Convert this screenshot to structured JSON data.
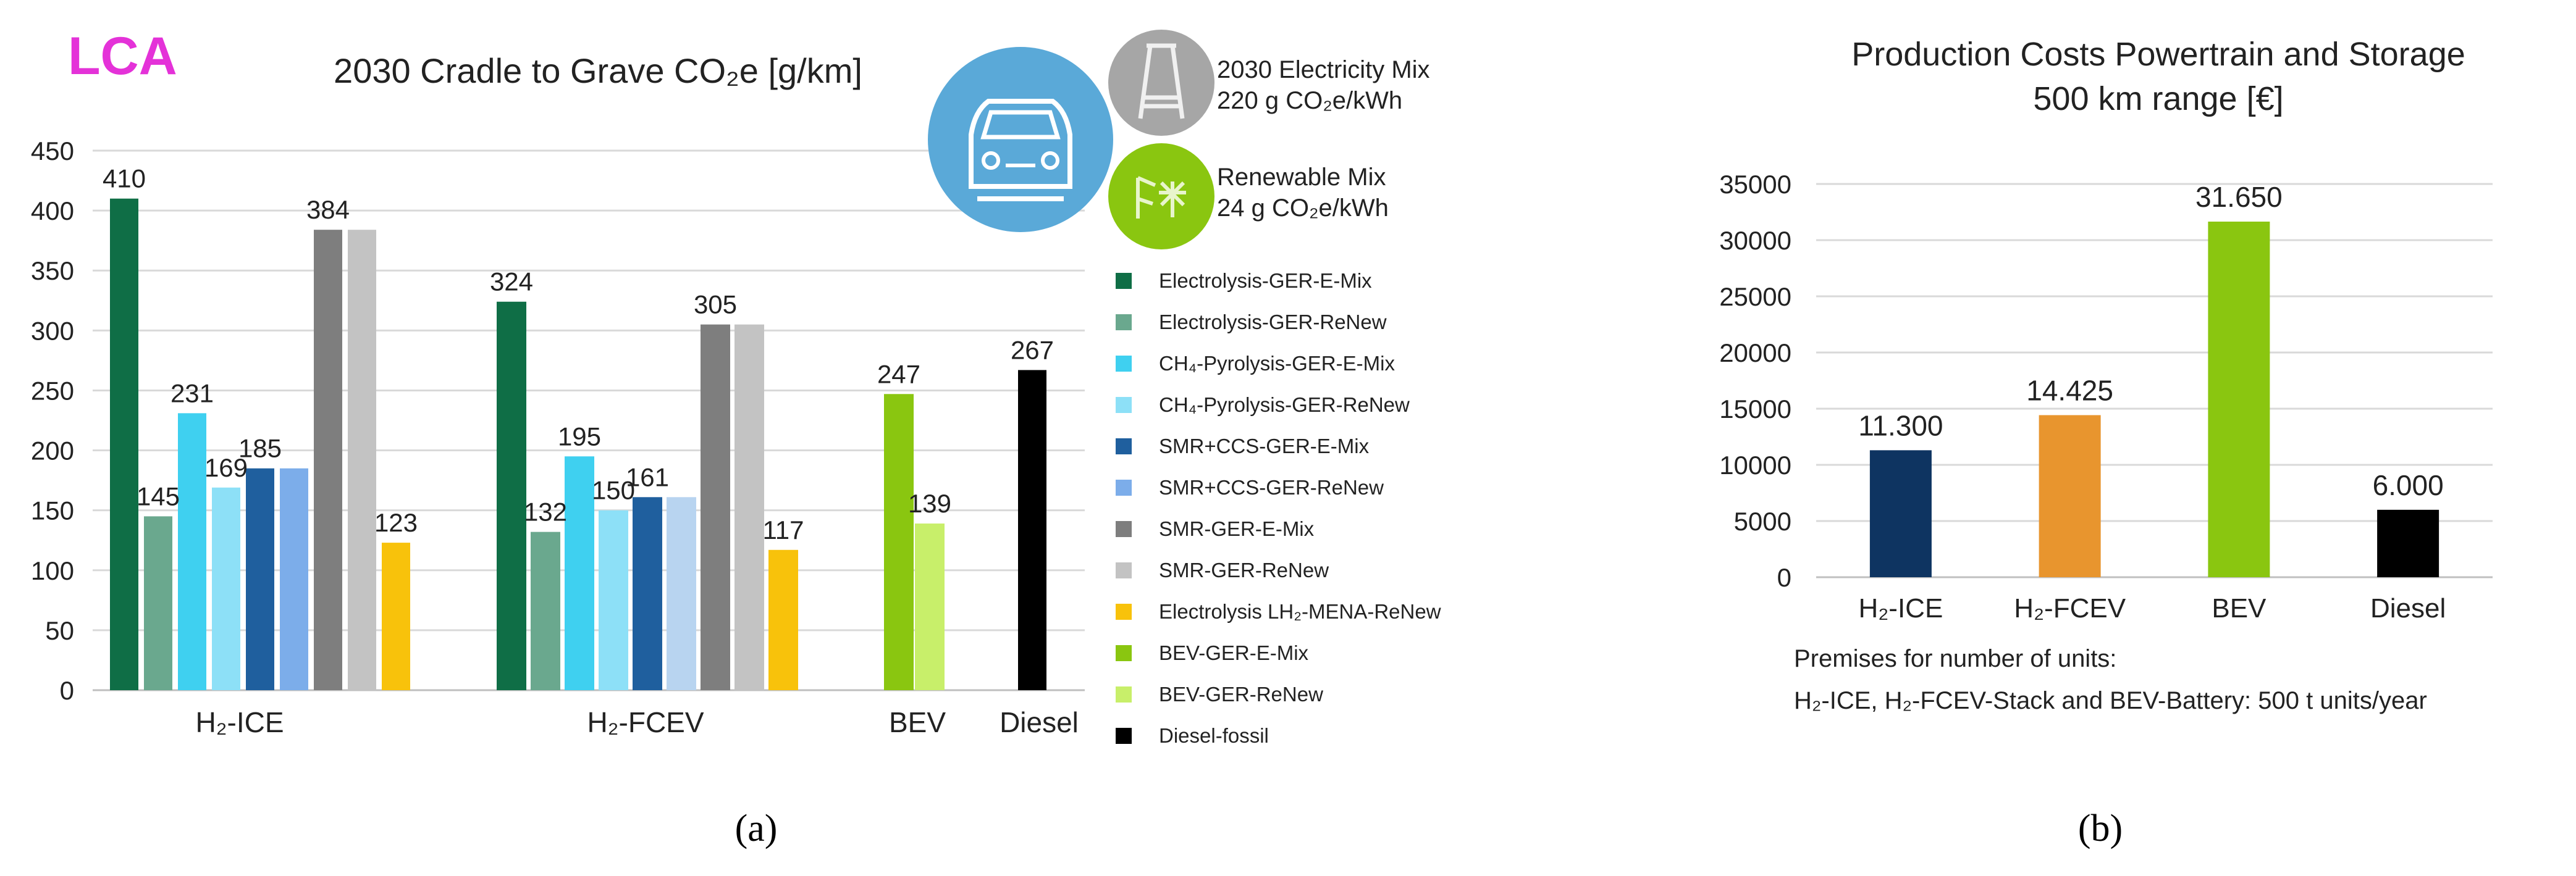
{
  "chart_data": [
    {
      "type": "bar",
      "logo": "LCA",
      "title": "2030 Cradle to Grave CO₂e [g/km]",
      "caption": "(a)",
      "ylim": [
        0,
        450
      ],
      "yticks": [
        "0",
        "50",
        "100",
        "150",
        "200",
        "250",
        "300",
        "350",
        "400",
        "450"
      ],
      "grid": true,
      "legend_position": "right",
      "colors": {
        "Electrolysis-GER-E-Mix": "#0f6e46",
        "Electrolysis-GER-ReNew": "#6aa88e",
        "CH₄-Pyrolysis-GER-E-Mix": "#3fd0f0",
        "CH₄-Pyrolysis-GER-ReNew": "#8de0f7",
        "SMR+CCS-GER-E-Mix": "#1f5f9e",
        "SMR+CCS-GER-ReNew": "#7cadea",
        "SMR-GER-E-Mix": "#7e7e7e",
        "SMR-GER-ReNew": "#c3c3c3",
        "Electrolysis LH₂-MENA-ReNew": "#f8c20b",
        "BEV-GER-E-Mix": "#8ac610",
        "BEV-GER-ReNew": "#c8ef6a",
        "Diesel-fossil": "#000000",
        "SMR+CCS-GER-ReNew (H₂-FCEV)": "#b8d4f0"
      },
      "legend": [
        "Electrolysis-GER-E-Mix",
        "Electrolysis-GER-ReNew",
        "CH₄-Pyrolysis-GER-E-Mix",
        "CH₄-Pyrolysis-GER-ReNew",
        "SMR+CCS-GER-E-Mix",
        "SMR+CCS-GER-ReNew",
        "SMR-GER-E-Mix",
        "SMR-GER-ReNew",
        "Electrolysis LH₂-MENA-ReNew",
        "BEV-GER-E-Mix",
        "BEV-GER-ReNew",
        "Diesel-fossil"
      ],
      "groups": [
        {
          "label": "H₂-ICE",
          "bars": [
            {
              "series": "Electrolysis-GER-E-Mix",
              "value": 410,
              "label": "410"
            },
            {
              "series": "Electrolysis-GER-ReNew",
              "value": 145,
              "label": "145"
            },
            {
              "series": "CH₄-Pyrolysis-GER-E-Mix",
              "value": 231,
              "label": "231"
            },
            {
              "series": "CH₄-Pyrolysis-GER-ReNew",
              "value": 169,
              "label": "169"
            },
            {
              "series": "SMR+CCS-GER-E-Mix",
              "value": 185,
              "label": "185"
            },
            {
              "series": "SMR+CCS-GER-ReNew",
              "value": 185,
              "label": ""
            },
            {
              "series": "SMR-GER-E-Mix",
              "value": 384,
              "label": "384"
            },
            {
              "series": "SMR-GER-ReNew",
              "value": 384,
              "label": ""
            },
            {
              "series": "Electrolysis LH₂-MENA-ReNew",
              "value": 123,
              "label": "123"
            }
          ]
        },
        {
          "label": "H₂-FCEV",
          "bars": [
            {
              "series": "Electrolysis-GER-E-Mix",
              "value": 324,
              "label": "324"
            },
            {
              "series": "Electrolysis-GER-ReNew",
              "value": 132,
              "label": "132"
            },
            {
              "series": "CH₄-Pyrolysis-GER-E-Mix",
              "value": 195,
              "label": "195"
            },
            {
              "series": "CH₄-Pyrolysis-GER-ReNew",
              "value": 150,
              "label": "150"
            },
            {
              "series": "SMR+CCS-GER-E-Mix",
              "value": 161,
              "label": "161"
            },
            {
              "series": "SMR+CCS-GER-ReNew (H₂-FCEV)",
              "value": 161,
              "label": ""
            },
            {
              "series": "SMR-GER-E-Mix",
              "value": 305,
              "label": "305"
            },
            {
              "series": "SMR-GER-ReNew",
              "value": 305,
              "label": ""
            },
            {
              "series": "Electrolysis LH₂-MENA-ReNew",
              "value": 117,
              "label": "117"
            }
          ]
        },
        {
          "label": "BEV",
          "bars": [
            {
              "series": "BEV-GER-E-Mix",
              "value": 247,
              "label": "247"
            },
            {
              "series": "BEV-GER-ReNew",
              "value": 139,
              "label": "139"
            }
          ]
        },
        {
          "label": "Diesel",
          "bars": [
            {
              "series": "Diesel-fossil",
              "value": 267,
              "label": "267"
            }
          ]
        }
      ],
      "electricity_mixes": [
        {
          "name": "2030 Electricity Mix",
          "value": "220 g CO₂e/kWh",
          "color": "#a6a6a6"
        },
        {
          "name": "Renewable Mix",
          "value": "24 g CO₂e/kWh",
          "color": "#8ac610"
        }
      ],
      "car_circle_color": "#5aa9d8"
    },
    {
      "type": "bar",
      "title": "Production Costs Powertrain and Storage",
      "subtitle": "500 km range [€]",
      "caption": "(b)",
      "ylim": [
        0,
        35000
      ],
      "yticks": [
        "0",
        "5000",
        "10000",
        "15000",
        "20000",
        "25000",
        "30000",
        "35000"
      ],
      "grid": true,
      "categories": [
        "H₂-ICE",
        "H₂-FCEV",
        "BEV",
        "Diesel"
      ],
      "values": [
        11300,
        14425,
        31650,
        6000
      ],
      "value_labels": [
        "11.300",
        "14.425",
        "31.650",
        "6.000"
      ],
      "colors": [
        "#0e3461",
        "#e8952e",
        "#8ac610",
        "#000000"
      ],
      "premises": [
        "Premises for number of units:",
        "H₂-ICE, H₂-FCEV-Stack and BEV-Battery: 500 t units/year"
      ]
    }
  ]
}
